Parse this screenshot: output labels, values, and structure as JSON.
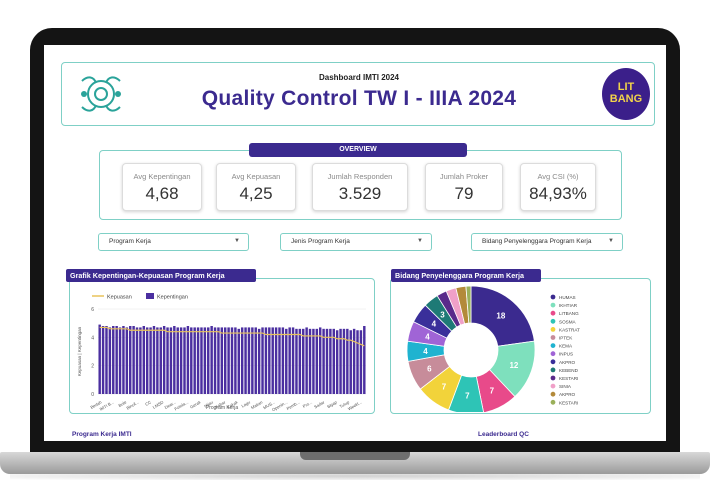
{
  "header": {
    "subtitle": "Dashboard IMTI 2024",
    "title": "Quality Control TW I - IIIA 2024",
    "badge_line1": "LIT",
    "badge_line2": "BANG"
  },
  "overview": {
    "label": "OVERVIEW",
    "kpis": [
      {
        "label": "Avg Kepentingan",
        "value": "4,68"
      },
      {
        "label": "Avg Kepuasan",
        "value": "4,25"
      },
      {
        "label": "Jumlah Responden",
        "value": "3.529"
      },
      {
        "label": "Jumlah Proker",
        "value": "79"
      },
      {
        "label": "Avg CSI (%)",
        "value": "84,93%"
      }
    ]
  },
  "filters": [
    {
      "label": "Program Kerja"
    },
    {
      "label": "Jenis Program Kerja"
    },
    {
      "label": "Bidang Penyelenggara Program Kerja"
    }
  ],
  "colors": {
    "accent": "#3b2a8f",
    "border": "#7fd0c6",
    "kepuasan_line": "#e8c25a",
    "kepentingan_bar": "#4b2fa0"
  },
  "bar_chart": {
    "tag": "Grafik Kepentingan-Kepuasan Program Kerja",
    "legend_kepuasan": "Kepuasan",
    "legend_kepentingan": "Kepentingan",
    "ylabel": "Kepuasan | Kepentingan",
    "xlabel": "Program Kerja",
    "y_ticks": [
      "6",
      "4",
      "2",
      "0"
    ],
    "x_tick_labels": [
      "Bedah",
      "IMTI B...",
      "Bule",
      "Bincil...",
      "CC",
      "LMSD",
      "Dear...",
      "Fotola...",
      "Gerak",
      "Hijau",
      "Kabar",
      "Kakak",
      "Lagu",
      "Makan",
      "MUS...",
      "Openin...",
      "Pemb...",
      "Pro...",
      "Sadar",
      "Sigap",
      "Tutup",
      "Weekl..."
    ]
  },
  "chart_data": [
    {
      "type": "bar",
      "title": "Grafik Kepentingan-Kepuasan Program Kerja",
      "xlabel": "Program Kerja",
      "ylabel": "Kepuasan | Kepentingan",
      "ylim": [
        0,
        6
      ],
      "legend": "top-left",
      "grid": true,
      "series": [
        {
          "name": "Kepentingan",
          "type": "bar",
          "values": [
            4.9,
            4.8,
            4.8,
            4.7,
            4.8,
            4.8,
            4.7,
            4.8,
            4.7,
            4.8,
            4.8,
            4.7,
            4.7,
            4.8,
            4.7,
            4.7,
            4.8,
            4.7,
            4.7,
            4.8,
            4.7,
            4.7,
            4.8,
            4.7,
            4.7,
            4.7,
            4.8,
            4.7,
            4.7,
            4.7,
            4.7,
            4.7,
            4.7,
            4.8,
            4.7,
            4.7,
            4.7,
            4.7,
            4.7,
            4.7,
            4.7,
            4.6,
            4.7,
            4.7,
            4.7,
            4.7,
            4.7,
            4.6,
            4.7,
            4.7,
            4.7,
            4.7,
            4.7,
            4.7,
            4.7,
            4.6,
            4.7,
            4.7,
            4.6,
            4.6,
            4.6,
            4.7,
            4.6,
            4.6,
            4.6,
            4.7,
            4.6,
            4.6,
            4.6,
            4.6,
            4.5,
            4.6,
            4.6,
            4.6,
            4.5,
            4.6,
            4.5,
            4.5,
            4.8
          ]
        },
        {
          "name": "Kepuasan",
          "type": "line",
          "values": [
            4.7,
            4.7,
            4.7,
            4.6,
            4.6,
            4.6,
            4.6,
            4.6,
            4.6,
            4.5,
            4.5,
            4.5,
            4.5,
            4.5,
            4.5,
            4.5,
            4.5,
            4.5,
            4.5,
            4.5,
            4.4,
            4.4,
            4.4,
            4.4,
            4.4,
            4.4,
            4.4,
            4.4,
            4.4,
            4.4,
            4.4,
            4.4,
            4.4,
            4.4,
            4.4,
            4.4,
            4.3,
            4.3,
            4.3,
            4.3,
            4.3,
            4.3,
            4.3,
            4.3,
            4.3,
            4.3,
            4.3,
            4.3,
            4.3,
            4.2,
            4.2,
            4.2,
            4.2,
            4.2,
            4.2,
            4.2,
            4.2,
            4.2,
            4.2,
            4.2,
            4.1,
            4.1,
            4.1,
            4.1,
            4.1,
            4.1,
            4.0,
            4.0,
            4.0,
            4.0,
            3.9,
            3.9,
            3.9,
            3.8,
            3.8,
            3.7,
            3.6,
            3.5,
            3.4
          ]
        }
      ]
    },
    {
      "type": "pie",
      "title": "Bidang Penyelenggara Program Kerja",
      "legend": "right",
      "labels": [
        "HUMAS",
        "IKHTIAR",
        "LITBANG",
        "SOSMA",
        "KASTRAT",
        "IPTEK",
        "KEMA",
        "INPUS",
        "AKPRO",
        "KEBEND",
        "KESTARI",
        "SINIA",
        "AKPRO",
        "KESTARI"
      ],
      "values": [
        18,
        12,
        7,
        7,
        7,
        6,
        4,
        4,
        4,
        3,
        2,
        2,
        2,
        1
      ],
      "colors": [
        "#3b2a8f",
        "#7ee0bd",
        "#e84a8a",
        "#2ec4b6",
        "#f2d33a",
        "#c78c9a",
        "#1fb3d0",
        "#a064d6",
        "#3a2f9a",
        "#1e7a76",
        "#5a2a8a",
        "#f0a0c8",
        "#b38a3a",
        "#9ab05a"
      ]
    }
  ],
  "pie_chart": {
    "tag": "Bidang Penyelenggara Program Kerja"
  },
  "footer": {
    "left": "Program Kerja IMTI",
    "right": "Leaderboard QC"
  }
}
